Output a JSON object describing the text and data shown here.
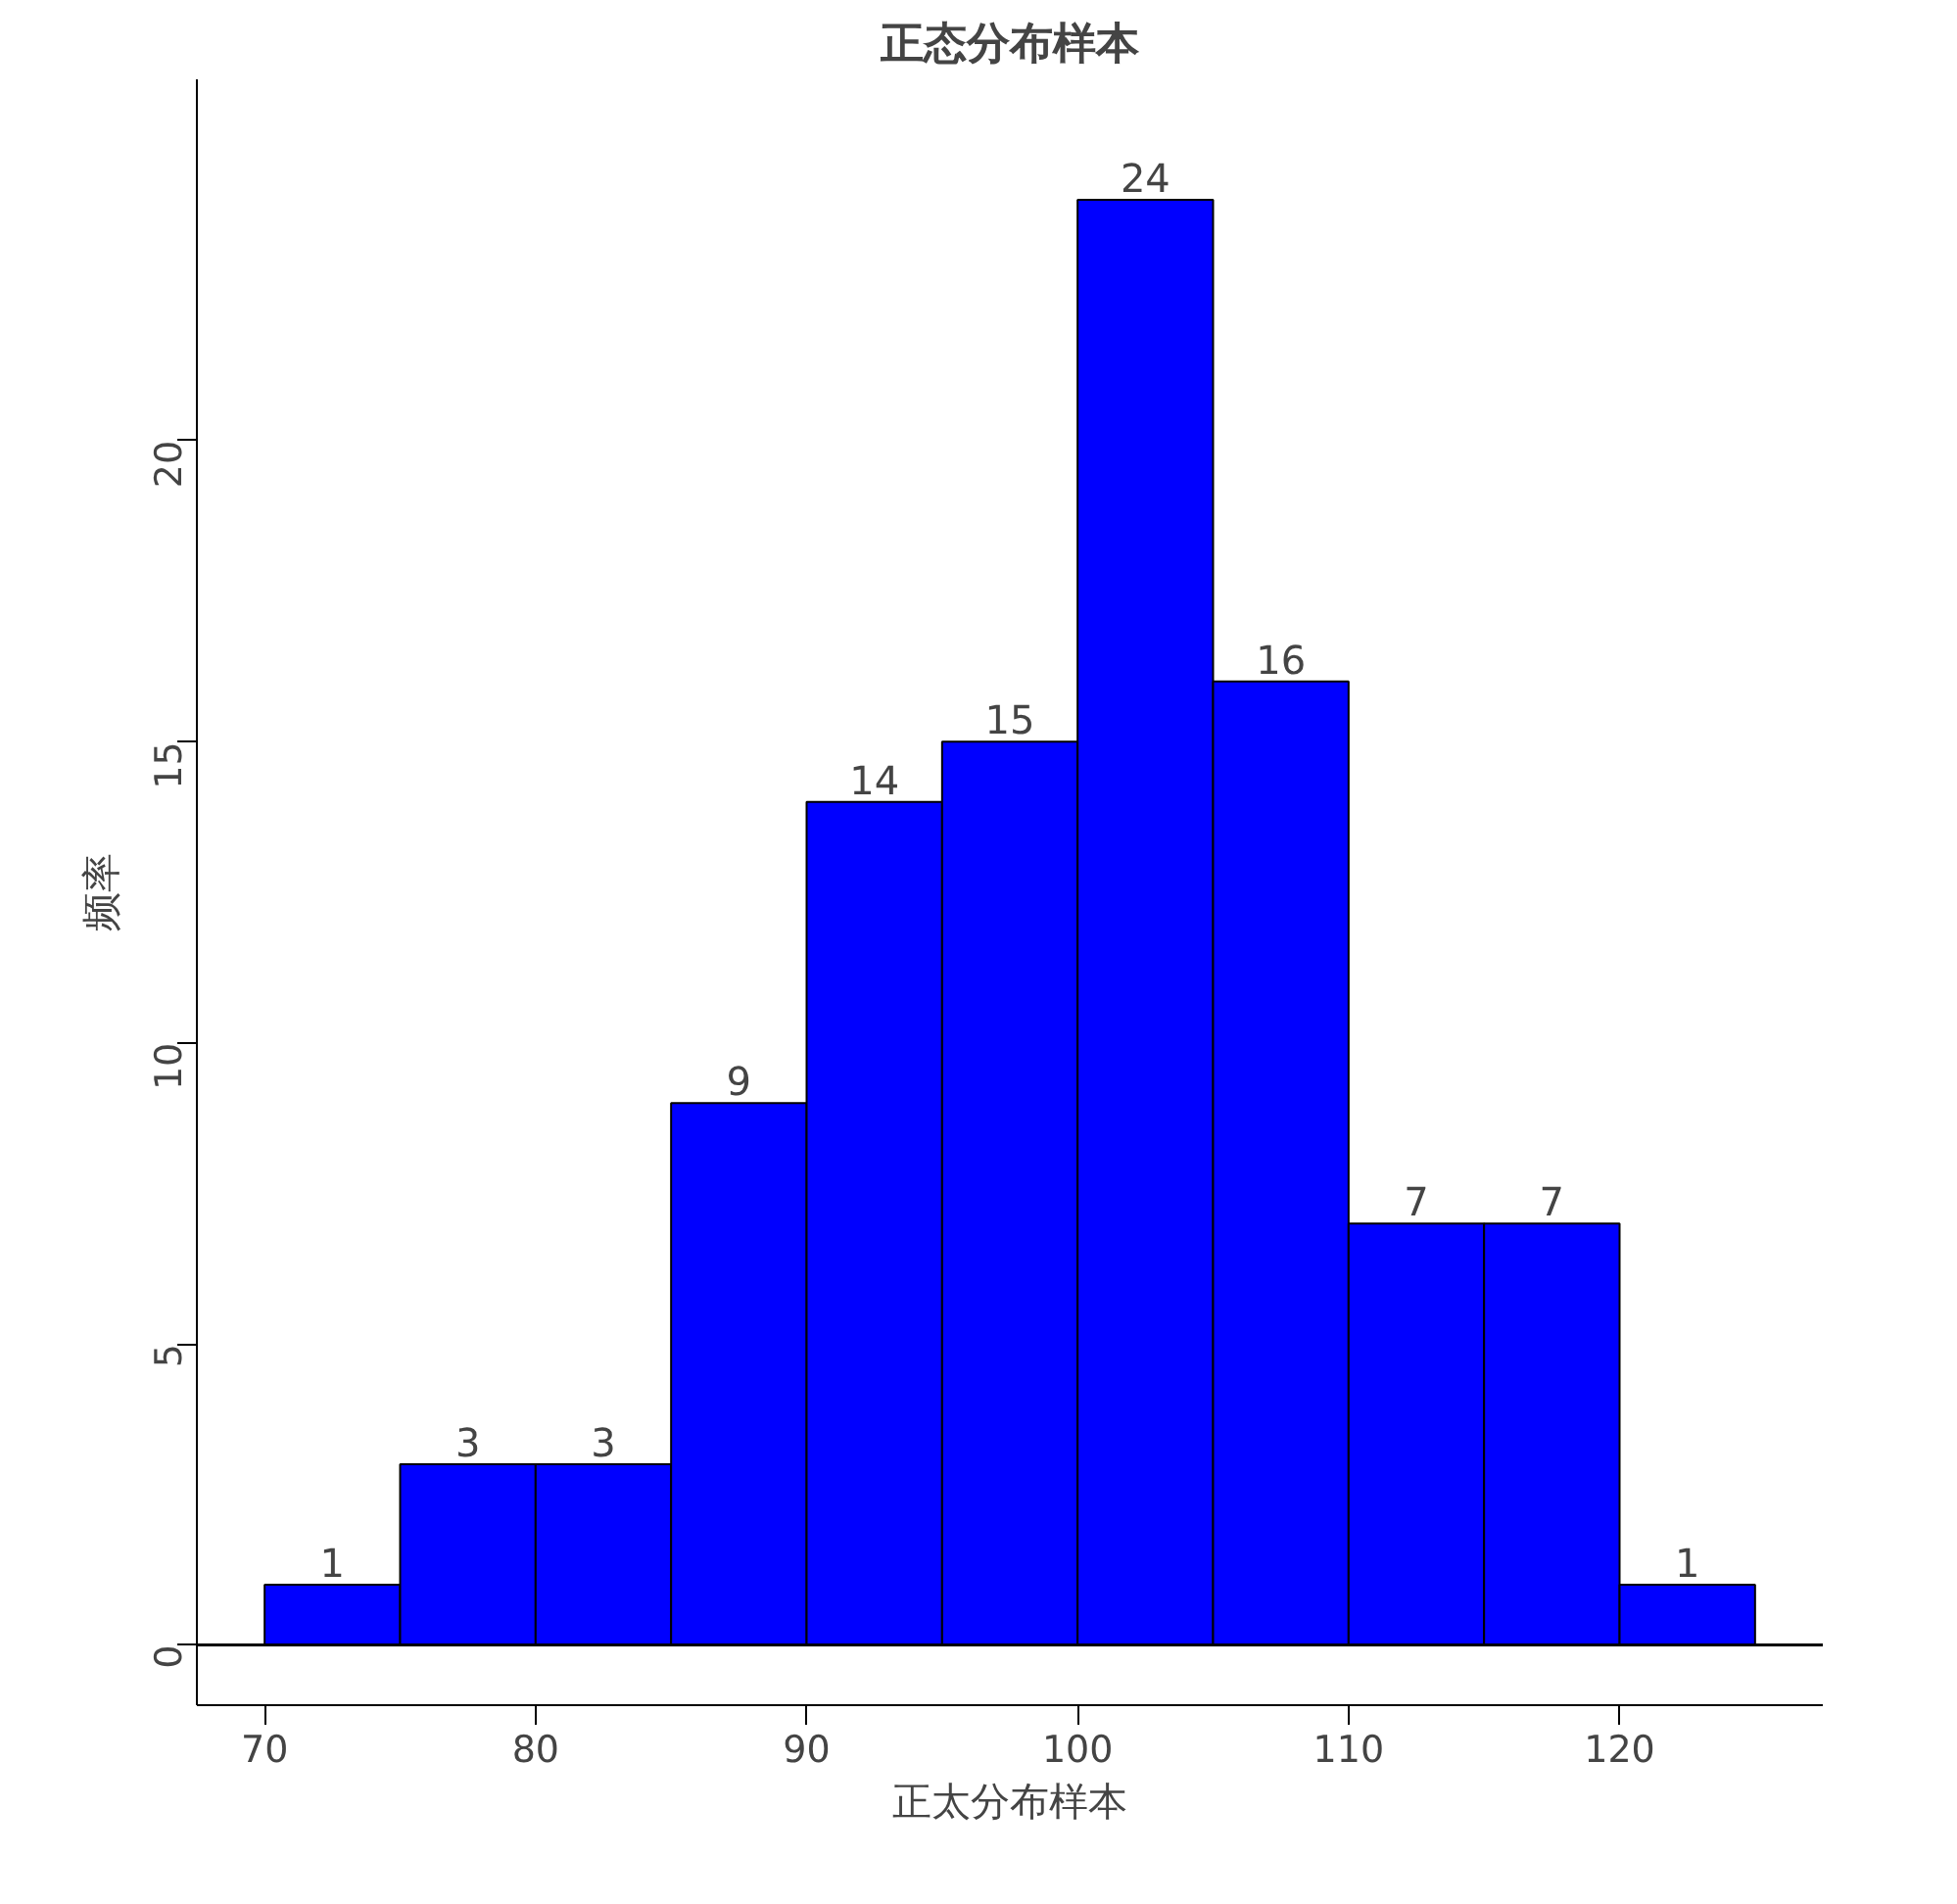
{
  "chart_data": {
    "type": "histogram",
    "title": "正态分布样本",
    "xlabel": "正太分布样本",
    "ylabel": "频率",
    "bins": [
      70,
      75,
      80,
      85,
      90,
      95,
      100,
      105,
      110,
      115,
      120,
      125
    ],
    "values": [
      1,
      3,
      3,
      9,
      14,
      15,
      24,
      16,
      7,
      7,
      1
    ],
    "color": "#0000ff",
    "data_labels": true,
    "xlim": [
      67.5,
      127.5
    ],
    "ylim": [
      -1,
      26
    ],
    "xticks": [
      70,
      80,
      90,
      100,
      110,
      120
    ],
    "yticks": [
      0,
      5,
      10,
      15,
      20
    ],
    "ref_lines": [
      {
        "axis": "y",
        "value": 0
      }
    ],
    "grid": false
  }
}
